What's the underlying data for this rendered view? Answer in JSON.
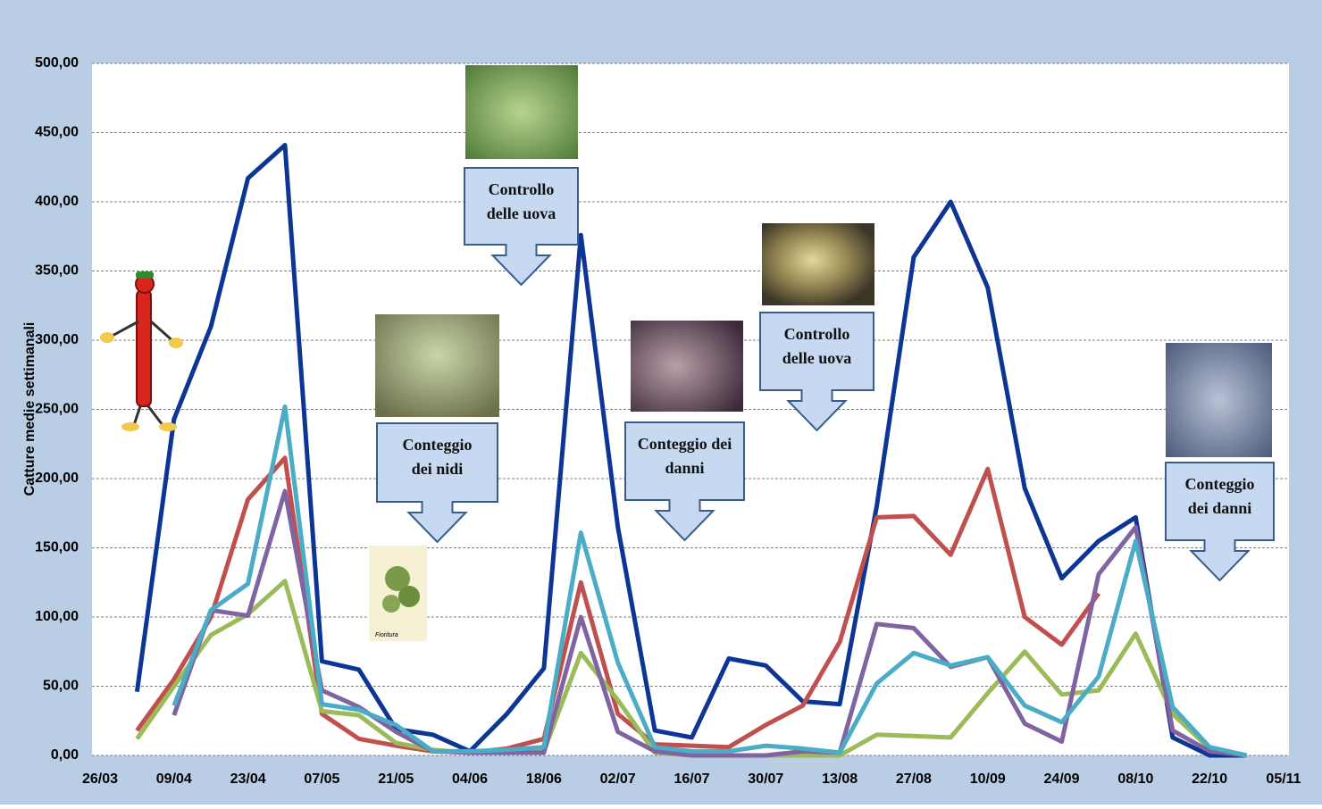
{
  "chart_data": {
    "type": "line",
    "y_axis_label": "Catture medie settimanali",
    "categories": [
      "26/03",
      null,
      "09/04",
      null,
      "23/04",
      null,
      "07/05",
      null,
      "21/05",
      null,
      "04/06",
      null,
      "18/06",
      null,
      "02/07",
      null,
      "16/07",
      null,
      "30/07",
      null,
      "13/08",
      null,
      "27/08",
      null,
      "10/09",
      null,
      "24/09",
      null,
      "08/10",
      null,
      "22/10",
      null,
      "05/11"
    ],
    "ylim": [
      0,
      500
    ],
    "yticks": [
      {
        "value": 0,
        "label": "0,00"
      },
      {
        "value": 50,
        "label": "50,00"
      },
      {
        "value": 100,
        "label": "100,00"
      },
      {
        "value": 150,
        "label": "150,00"
      },
      {
        "value": 200,
        "label": "200,00"
      },
      {
        "value": 250,
        "label": "250,00"
      },
      {
        "value": 300,
        "label": "300,00"
      },
      {
        "value": 350,
        "label": "350,00"
      },
      {
        "value": 400,
        "label": "400,00"
      },
      {
        "value": 450,
        "label": "450,00"
      },
      {
        "value": 500,
        "label": "500,00"
      }
    ],
    "grid": true,
    "series": [
      {
        "color": "#0d3594",
        "values": [
          null,
          46,
          243,
          310,
          417,
          441,
          68,
          62,
          19,
          15,
          3,
          30,
          63,
          376,
          165,
          18,
          13,
          70,
          65,
          39,
          37,
          180,
          360,
          400,
          338,
          193,
          128,
          155,
          172,
          13,
          0,
          0,
          null
        ]
      },
      {
        "color": "#c0504d",
        "values": [
          null,
          18,
          55,
          100,
          185,
          215,
          30,
          12,
          7,
          3,
          2,
          5,
          12,
          125,
          30,
          8,
          7,
          6,
          22,
          36,
          82,
          172,
          173,
          145,
          207,
          100,
          80,
          117,
          null,
          null,
          null,
          null,
          null
        ]
      },
      {
        "color": "#9bbb59",
        "values": [
          null,
          12,
          50,
          87,
          102,
          126,
          32,
          29,
          9,
          4,
          2,
          2,
          3,
          74,
          40,
          2,
          0,
          0,
          0,
          0,
          0,
          15,
          14,
          13,
          45,
          75,
          44,
          47,
          88,
          30,
          5,
          0,
          null
        ]
      },
      {
        "color": "#8064a2",
        "values": [
          null,
          null,
          29,
          105,
          101,
          191,
          47,
          35,
          17,
          3,
          2,
          2,
          2,
          100,
          17,
          3,
          0,
          0,
          0,
          3,
          2,
          95,
          92,
          64,
          71,
          23,
          10,
          131,
          165,
          18,
          3,
          0,
          null
        ]
      },
      {
        "color": "#4bacc6",
        "values": [
          null,
          null,
          36,
          105,
          124,
          252,
          37,
          33,
          22,
          3,
          3,
          4,
          6,
          161,
          67,
          6,
          3,
          3,
          7,
          5,
          2,
          52,
          74,
          65,
          71,
          36,
          24,
          57,
          155,
          35,
          6,
          0,
          null
        ]
      }
    ],
    "annotations": [
      {
        "lines": [
          "Controllo",
          "delle uova"
        ]
      },
      {
        "lines": [
          "Conteggio",
          "dei nidi"
        ]
      },
      {
        "lines": [
          "Conteggio dei",
          "danni"
        ]
      },
      {
        "lines": [
          "Controllo",
          "delle uova"
        ]
      },
      {
        "lines": [
          "Conteggio",
          "dei danni"
        ]
      }
    ],
    "image_caption": "Fioritura"
  }
}
